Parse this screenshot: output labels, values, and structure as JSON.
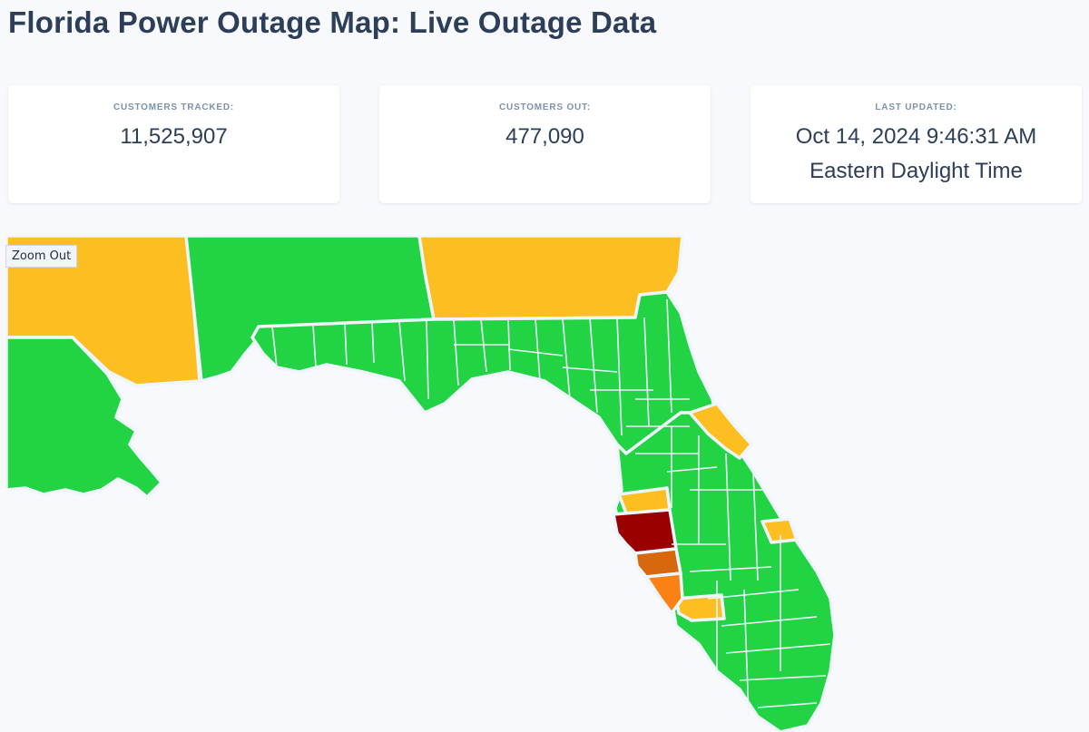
{
  "page": {
    "title": "Florida Power Outage Map: Live Outage Data"
  },
  "stats": {
    "tracked": {
      "label": "CUSTOMERS TRACKED:",
      "value": "11,525,907"
    },
    "out": {
      "label": "CUSTOMERS OUT:",
      "value": "477,090"
    },
    "updated": {
      "label": "LAST UPDATED:",
      "value_line1": "Oct 14, 2024 9:46:31 AM",
      "value_line2": "Eastern Daylight Time"
    }
  },
  "map": {
    "zoom_out_label": "Zoom Out",
    "colors": {
      "low": "#22d343",
      "moderate": "#fcbe20",
      "elevated": "#fa8114",
      "high": "#d7680d",
      "severe": "#9b0000",
      "background": "#f7f9fc",
      "border": "#eef6fb"
    }
  }
}
